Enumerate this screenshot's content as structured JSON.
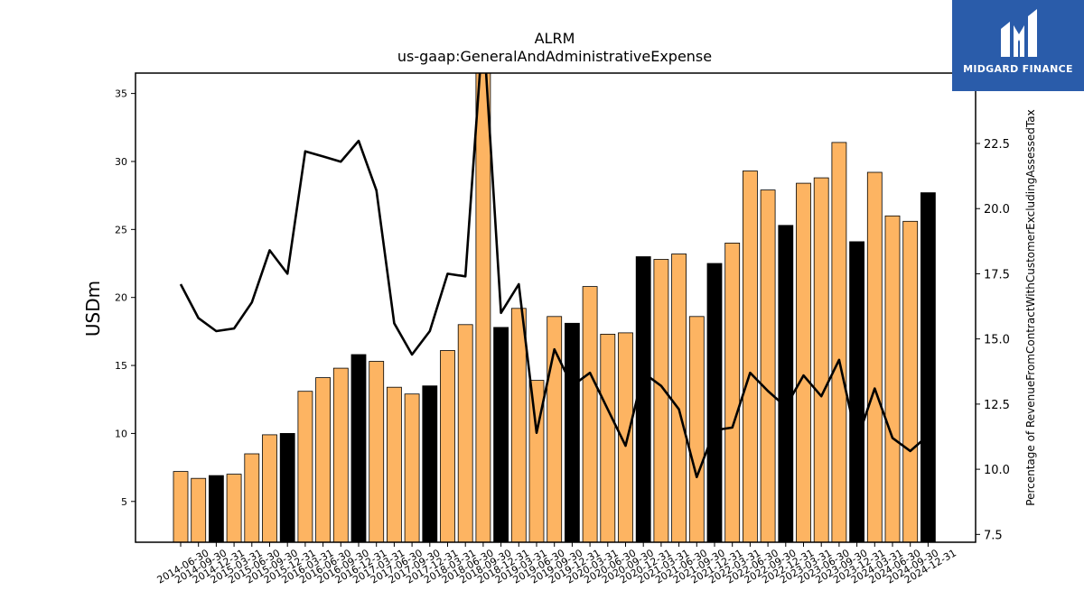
{
  "logo": {
    "text": "MIDGARD FINANCE",
    "background": "#2a5caa"
  },
  "chart_data": {
    "type": "bar",
    "title": "ALRM",
    "subtitle": "us-gaap:GeneralAndAdministrativeExpense",
    "ylabel": "USDm",
    "y2label": "Percentage of RevenueFromContractWithCustomerExcludingAssessedTax",
    "ylim": [
      2,
      36.5
    ],
    "y2lim": [
      7.2,
      25.2
    ],
    "yticks": [
      5,
      10,
      15,
      20,
      25,
      30,
      35
    ],
    "y2ticks": [
      7.5,
      10.0,
      12.5,
      15.0,
      17.5,
      20.0,
      22.5
    ],
    "colors": {
      "bar_default": "#fdb462",
      "bar_q4": "#000000",
      "line": "#000000"
    },
    "categories": [
      "2014-06-30",
      "2014-09-30",
      "2014-12-31",
      "2015-03-31",
      "2015-06-30",
      "2015-09-30",
      "2015-12-31",
      "2016-03-31",
      "2016-06-30",
      "2016-09-30",
      "2016-12-31",
      "2017-03-31",
      "2017-06-30",
      "2017-09-30",
      "2017-12-31",
      "2018-03-31",
      "2018-06-30",
      "2018-09-30",
      "2018-12-31",
      "2019-03-31",
      "2019-06-30",
      "2019-09-30",
      "2019-12-31",
      "2020-03-31",
      "2020-06-30",
      "2020-09-30",
      "2020-12-31",
      "2021-03-31",
      "2021-06-30",
      "2021-09-30",
      "2021-12-31",
      "2022-03-31",
      "2022-06-30",
      "2022-09-30",
      "2022-12-31",
      "2023-03-31",
      "2023-06-30",
      "2023-09-30",
      "2023-12-31",
      "2024-03-31",
      "2024-06-30",
      "2024-09-30",
      "2024-12-31"
    ],
    "series": [
      {
        "type": "bar",
        "axis": "left",
        "values": [
          7.2,
          6.7,
          6.9,
          7.0,
          8.5,
          9.9,
          10.0,
          13.1,
          14.1,
          14.8,
          15.8,
          15.3,
          13.4,
          12.9,
          13.5,
          16.1,
          18.0,
          37.0,
          17.8,
          19.2,
          13.9,
          18.6,
          18.1,
          20.8,
          17.3,
          17.4,
          23.0,
          22.8,
          23.2,
          18.6,
          22.5,
          24.0,
          29.3,
          27.9,
          25.3,
          28.4,
          28.8,
          31.4,
          24.1,
          29.2,
          26.0,
          25.6,
          27.7
        ]
      },
      {
        "type": "line",
        "axis": "right",
        "values": [
          17.1,
          15.8,
          15.3,
          15.4,
          16.4,
          18.4,
          17.5,
          22.2,
          22.0,
          21.8,
          22.6,
          20.7,
          15.6,
          14.4,
          15.3,
          17.5,
          17.4,
          27.0,
          16.0,
          17.1,
          11.4,
          14.6,
          13.2,
          13.7,
          12.3,
          10.9,
          13.7,
          13.2,
          12.3,
          9.7,
          11.5,
          11.6,
          13.7,
          13.0,
          12.4,
          13.6,
          12.8,
          14.2,
          11.1,
          13.1,
          11.2,
          10.7,
          11.3
        ]
      }
    ],
    "q4_bar_indices": [
      2,
      6,
      10,
      14,
      18,
      22,
      26,
      30,
      34,
      38,
      42
    ],
    "grid": false,
    "legend": "none"
  }
}
